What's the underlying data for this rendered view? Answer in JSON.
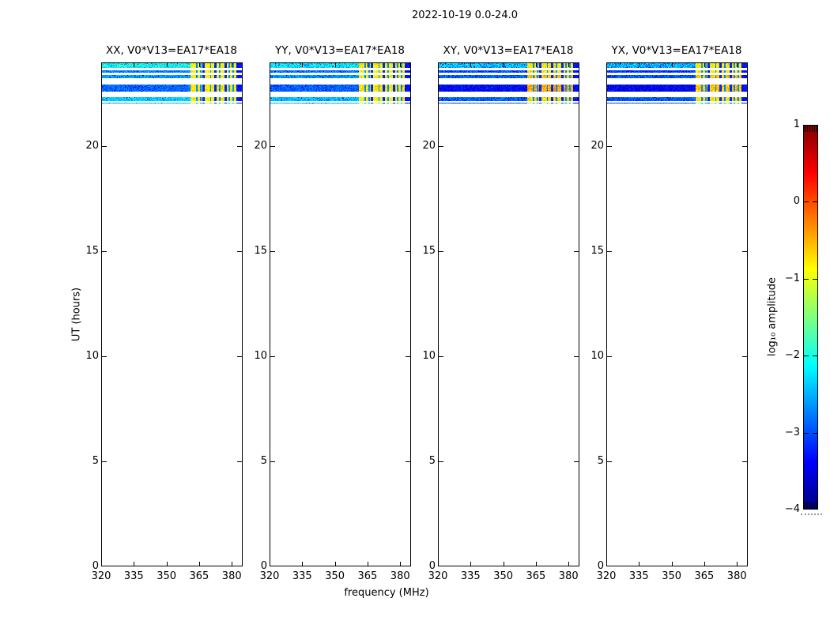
{
  "chart_data": {
    "type": "heatmap",
    "suptitle": "2022-10-19 0.0-24.0",
    "xlabel": "frequency (MHz)",
    "ylabel": "UT (hours)",
    "panels": [
      {
        "pol": "XX",
        "title": "XX, V0*V13=EA17*EA18"
      },
      {
        "pol": "YY",
        "title": "YY, V0*V13=EA17*EA18"
      },
      {
        "pol": "XY",
        "title": "XY, V0*V13=EA17*EA18"
      },
      {
        "pol": "YX",
        "title": "YX, V0*V13=EA17*EA18"
      }
    ],
    "x_range": [
      320,
      385
    ],
    "x_ticks": [
      320,
      335,
      350,
      365,
      380
    ],
    "y_range": [
      0,
      24
    ],
    "y_ticks": [
      0,
      5,
      10,
      15,
      20
    ],
    "grid": false,
    "colorbar": {
      "label": "log₁₀ amplitude",
      "tick_labels": [
        "1",
        "0",
        "−1",
        "−2",
        "−3",
        "−4"
      ],
      "tick_values": [
        1,
        0,
        -1,
        -2,
        -3,
        -4
      ],
      "range": [
        -4,
        1
      ],
      "colormap": "jet"
    },
    "freq_structure": {
      "low_band": [
        320,
        361.2
      ],
      "rfi_blocks": [
        [
          361.2,
          366.5
        ],
        [
          367.7,
          371.9
        ],
        [
          373.1,
          376.6
        ],
        [
          377.9,
          382.0
        ]
      ],
      "separator_amp": -3.2,
      "high_edge": [
        382.0,
        385
      ],
      "edge_amp": -3.3,
      "channel_lines": [
        363.8,
        365.9,
        370.3,
        374.5,
        378.9,
        380.6
      ],
      "channel_line_amp": -2.7
    },
    "stripes": [
      {
        "ut0": 23.75,
        "ut1": 24.0,
        "left_amp": [
          -2.1,
          -2.2,
          -2.45,
          -2.5
        ],
        "left_sigma": 0.45,
        "block_amp": [
          -0.85,
          -0.85,
          -0.8,
          -0.8
        ],
        "block_sigma": 0.3
      },
      {
        "ut0": 23.52,
        "ut1": 23.63,
        "left_amp": [
          -2.75,
          -2.8,
          -3.0,
          -3.1
        ],
        "left_sigma": 0.3,
        "block_amp": [
          -0.9,
          -0.9,
          -0.7,
          -0.8
        ],
        "block_sigma": 0.3
      },
      {
        "ut0": 23.25,
        "ut1": 23.4,
        "left_amp": [
          -2.6,
          -2.65,
          -2.9,
          -2.95
        ],
        "left_sigma": 0.3,
        "block_amp": [
          -0.85,
          -0.85,
          -0.55,
          -0.6
        ],
        "block_sigma": 0.3
      },
      {
        "ut0": 22.61,
        "ut1": 22.95,
        "left_amp": [
          -2.85,
          -2.9,
          -3.35,
          -3.4
        ],
        "left_sigma": 0.3,
        "block_amp": [
          -0.8,
          -0.8,
          -0.45,
          -0.6
        ],
        "block_sigma": 0.35
      },
      {
        "ut0": 22.15,
        "ut1": 22.36,
        "left_amp": [
          -2.35,
          -2.45,
          -2.9,
          -2.95
        ],
        "left_sigma": 0.3,
        "block_amp": [
          -0.85,
          -0.85,
          -0.7,
          -0.75
        ],
        "block_sigma": 0.3
      },
      {
        "ut0": 22.04,
        "ut1": 22.1,
        "left_amp": [
          -2.5,
          -2.55,
          -3.0,
          -3.0
        ],
        "left_sigma": 0.2,
        "block_amp": [
          -1.1,
          -1.1,
          -1.3,
          -1.3
        ],
        "block_sigma": 0.35
      }
    ]
  }
}
